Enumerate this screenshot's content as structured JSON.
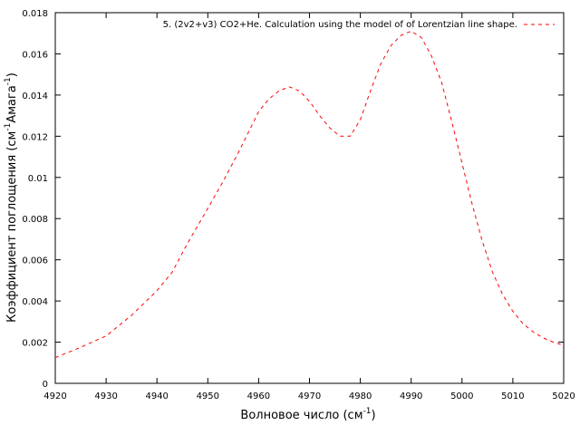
{
  "chart_data": {
    "type": "line",
    "xlabel": "Волновое число (см",
    "xlabel_sup": "-1",
    "xlabel_end": ")",
    "ylabel_part1": "Коэффициент поглощения (см",
    "ylabel_sup1": "-1",
    "ylabel_part2": "Амага",
    "ylabel_sup2": "-1",
    "ylabel_end": ")",
    "xlim": [
      4920,
      5020
    ],
    "ylim": [
      0,
      0.018
    ],
    "xticks": [
      4920,
      4930,
      4940,
      4950,
      4960,
      4970,
      4980,
      4990,
      5000,
      5010,
      5020
    ],
    "yticks": [
      0,
      0.002,
      0.004,
      0.006,
      0.008,
      0.01,
      0.012,
      0.014,
      0.016,
      0.018
    ],
    "xtick_labels": [
      "4920",
      "4930",
      "4940",
      "4950",
      "4960",
      "4970",
      "4980",
      "4990",
      "5000",
      "5010",
      "5020"
    ],
    "ytick_labels": [
      "0",
      "0.002",
      "0.004",
      "0.006",
      "0.008",
      "0.01",
      "0.012",
      "0.014",
      "0.016",
      "0.018"
    ],
    "legend_position": "top-right",
    "grid": false,
    "series": [
      {
        "name": "5. (2v2+v3) CO2+He. Calculation using the model of of Lorentzian line shape.",
        "color": "#ff0000",
        "dash": "dashed",
        "x": [
          4920,
          4925,
          4930,
          4935,
          4940,
          4943,
          4946,
          4950,
          4953,
          4956,
          4958,
          4960,
          4962,
          4964,
          4966,
          4968,
          4970,
          4972,
          4974,
          4976,
          4978,
          4980,
          4982,
          4984,
          4986,
          4988,
          4990,
          4992,
          4994,
          4996,
          4998,
          5000,
          5002,
          5004,
          5006,
          5008,
          5010,
          5012,
          5014,
          5016,
          5018,
          5020
        ],
        "y": [
          0.00125,
          0.00175,
          0.0023,
          0.0033,
          0.0045,
          0.0054,
          0.0068,
          0.0085,
          0.0098,
          0.0112,
          0.0122,
          0.0132,
          0.0138,
          0.0142,
          0.0144,
          0.0142,
          0.0137,
          0.013,
          0.0124,
          0.012,
          0.012,
          0.0128,
          0.0142,
          0.0155,
          0.0164,
          0.0169,
          0.0171,
          0.0168,
          0.0159,
          0.0146,
          0.0127,
          0.0107,
          0.0087,
          0.0069,
          0.0054,
          0.0043,
          0.0035,
          0.0029,
          0.0025,
          0.0022,
          0.002,
          0.00185
        ]
      }
    ]
  }
}
